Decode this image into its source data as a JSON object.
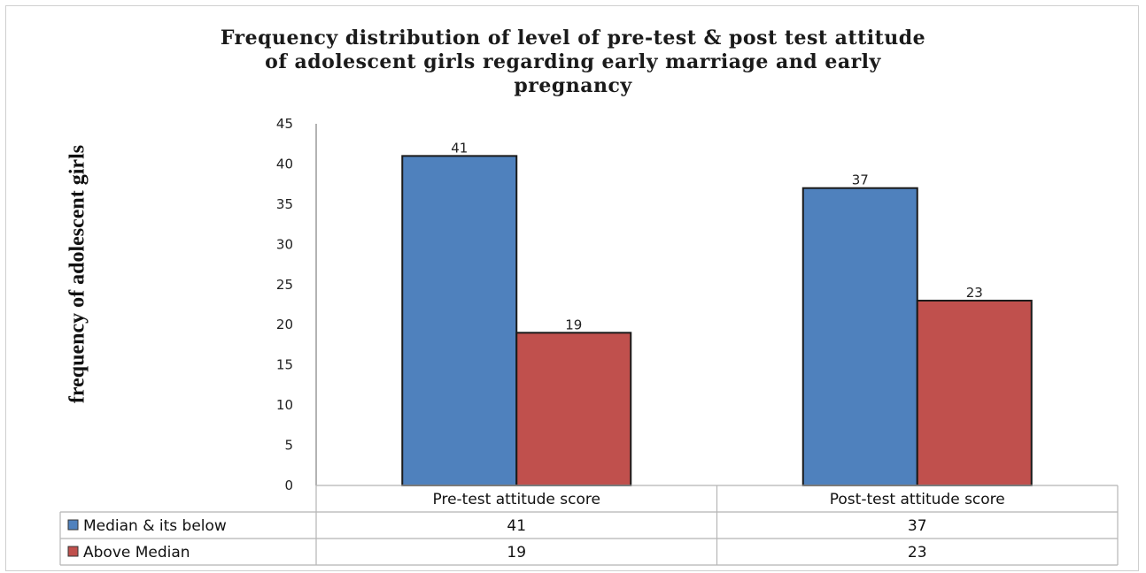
{
  "chart_data": {
    "type": "bar",
    "title_lines": [
      "Frequency distribution  of level of pre-test & post test attitude",
      "of adolescent girls regarding early marriage and early",
      "pregnancy"
    ],
    "ylabel": "frequency of adolescent girls",
    "xlabel": "",
    "ylim": [
      0,
      45
    ],
    "yticks": [
      0,
      5,
      10,
      15,
      20,
      25,
      30,
      35,
      40,
      45
    ],
    "categories": [
      "Pre-test attitude score",
      "Post-test attitude score"
    ],
    "series": [
      {
        "name": "Median & its below",
        "values": [
          41,
          37
        ],
        "color": "#4f81bd"
      },
      {
        "name": "Above Median",
        "values": [
          19,
          23
        ],
        "color": "#c0504d"
      }
    ],
    "grid": false,
    "legend": "data-table"
  }
}
